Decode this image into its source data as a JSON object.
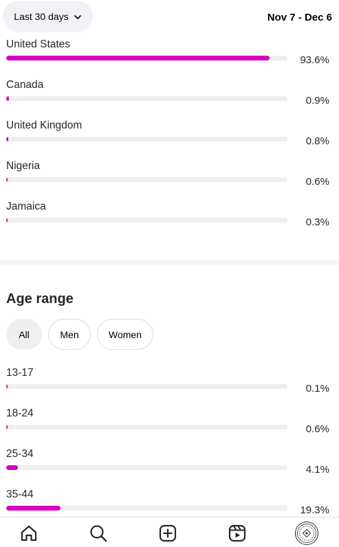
{
  "header": {
    "range_label": "Last 30 days",
    "date_range": "Nov 7 - Dec 6"
  },
  "countries": [
    {
      "name": "United States",
      "value": 93.6,
      "label": "93.6%"
    },
    {
      "name": "Canada",
      "value": 0.9,
      "label": "0.9%"
    },
    {
      "name": "United Kingdom",
      "value": 0.8,
      "label": "0.8%"
    },
    {
      "name": "Nigeria",
      "value": 0.6,
      "label": "0.6%"
    },
    {
      "name": "Jamaica",
      "value": 0.3,
      "label": "0.3%"
    }
  ],
  "age_section": {
    "title": "Age range",
    "filters": [
      {
        "label": "All",
        "active": true
      },
      {
        "label": "Men",
        "active": false
      },
      {
        "label": "Women",
        "active": false
      }
    ],
    "ranges": [
      {
        "name": "13-17",
        "value": 0.1,
        "label": "0.1%"
      },
      {
        "name": "18-24",
        "value": 0.6,
        "label": "0.6%"
      },
      {
        "name": "25-34",
        "value": 4.1,
        "label": "4.1%"
      },
      {
        "name": "35-44",
        "value": 19.3,
        "label": "19.3%"
      }
    ]
  },
  "bar_color": "#d600c2",
  "track_color": "#efefef",
  "nav": {
    "items": [
      "home-icon",
      "search-icon",
      "create-icon",
      "reels-icon",
      "profile-avatar"
    ]
  }
}
